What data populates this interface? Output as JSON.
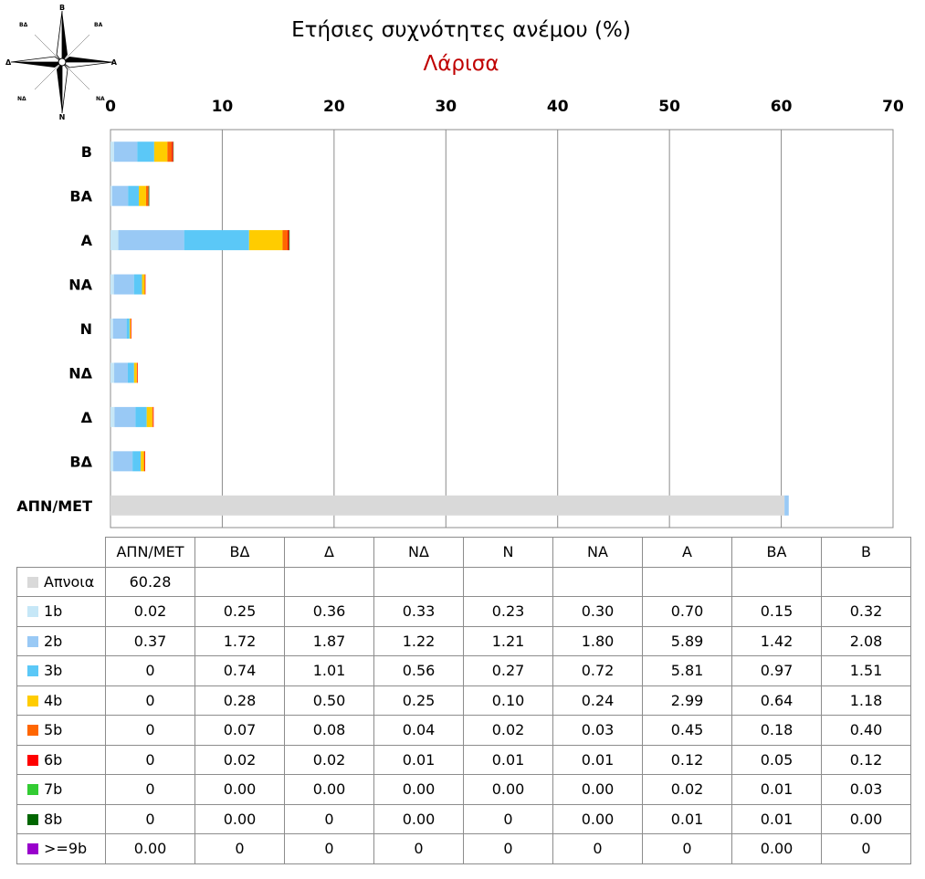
{
  "title": "Ετήσιες συχνότητες ανέμου (%)",
  "subtitle": "Λάρισα",
  "compass": {
    "north": "B",
    "northeast": "BA",
    "east": "A",
    "southeast": "NA",
    "south": "N",
    "southwest": "NΔ",
    "west": "Δ",
    "northwest": "BΔ"
  },
  "chart_data": {
    "type": "bar",
    "orientation": "horizontal",
    "stacked": true,
    "title": "Ετήσιες συχνότητες ανέμου (%)",
    "subtitle": "Λάρισα",
    "xlim": [
      0,
      70
    ],
    "xticks": [
      0,
      10,
      20,
      30,
      40,
      50,
      60,
      70
    ],
    "grid": true,
    "categories": [
      "ΑΠΝ/ΜΕΤ",
      "ΒΔ",
      "Δ",
      "ΝΔ",
      "Ν",
      "ΝΑ",
      "Α",
      "ΒΑ",
      "Β"
    ],
    "category_labels": [
      "ΑΠΝ/ΜΕΤ",
      "ΒΔ",
      "Δ",
      "ΝΔ",
      "Ν",
      "ΝΑ",
      "Α",
      "ΒΑ",
      "Β"
    ],
    "axis_labels": [
      "Β",
      "ΒΑ",
      "Α",
      "ΝΑ",
      "Ν",
      "ΝΔ",
      "Δ",
      "ΒΔ",
      "ΑΠΝ/ΜΕΤ"
    ],
    "series": [
      {
        "name": "Απνοια",
        "color": "#d9d9d9",
        "values": [
          60.28,
          null,
          null,
          null,
          null,
          null,
          null,
          null,
          null
        ],
        "display": [
          "60.28",
          "",
          "",
          "",
          "",
          "",
          "",
          "",
          ""
        ]
      },
      {
        "name": "1b",
        "color": "#c6e7f7",
        "values": [
          0.02,
          0.25,
          0.36,
          0.33,
          0.23,
          0.3,
          0.7,
          0.15,
          0.32
        ],
        "display": [
          "0.02",
          "0.25",
          "0.36",
          "0.33",
          "0.23",
          "0.30",
          "0.70",
          "0.15",
          "0.32"
        ]
      },
      {
        "name": "2b",
        "color": "#99c9f5",
        "values": [
          0.37,
          1.72,
          1.87,
          1.22,
          1.21,
          1.8,
          5.89,
          1.42,
          2.08
        ],
        "display": [
          "0.37",
          "1.72",
          "1.87",
          "1.22",
          "1.21",
          "1.80",
          "5.89",
          "1.42",
          "2.08"
        ]
      },
      {
        "name": "3b",
        "color": "#5bc8f7",
        "values": [
          0,
          0.74,
          1.01,
          0.56,
          0.27,
          0.72,
          5.81,
          0.97,
          1.51
        ],
        "display": [
          "0",
          "0.74",
          "1.01",
          "0.56",
          "0.27",
          "0.72",
          "5.81",
          "0.97",
          "1.51"
        ]
      },
      {
        "name": "4b",
        "color": "#ffcc00",
        "values": [
          0,
          0.28,
          0.5,
          0.25,
          0.1,
          0.24,
          2.99,
          0.64,
          1.18
        ],
        "display": [
          "0",
          "0.28",
          "0.50",
          "0.25",
          "0.10",
          "0.24",
          "2.99",
          "0.64",
          "1.18"
        ]
      },
      {
        "name": "5b",
        "color": "#ff6600",
        "values": [
          0,
          0.07,
          0.08,
          0.04,
          0.02,
          0.03,
          0.45,
          0.18,
          0.4
        ],
        "display": [
          "0",
          "0.07",
          "0.08",
          "0.04",
          "0.02",
          "0.03",
          "0.45",
          "0.18",
          "0.40"
        ]
      },
      {
        "name": "6b",
        "color": "#ff0000",
        "values": [
          0,
          0.02,
          0.02,
          0.01,
          0.01,
          0.01,
          0.12,
          0.05,
          0.12
        ],
        "display": [
          "0",
          "0.02",
          "0.02",
          "0.01",
          "0.01",
          "0.01",
          "0.12",
          "0.05",
          "0.12"
        ]
      },
      {
        "name": "7b",
        "color": "#33cc33",
        "values": [
          0,
          0.0,
          0.0,
          0.0,
          0.0,
          0.0,
          0.02,
          0.01,
          0.03
        ],
        "display": [
          "0",
          "0.00",
          "0.00",
          "0.00",
          "0.00",
          "0.00",
          "0.02",
          "0.01",
          "0.03"
        ]
      },
      {
        "name": "8b",
        "color": "#006600",
        "values": [
          0,
          0.0,
          0,
          0.0,
          0,
          0.0,
          0.01,
          0.01,
          0.0
        ],
        "display": [
          "0",
          "0.00",
          "0",
          "0.00",
          "0",
          "0.00",
          "0.01",
          "0.01",
          "0.00"
        ]
      },
      {
        "name": ">=9b",
        "color": "#9900cc",
        "values": [
          0.0,
          0,
          0,
          0,
          0,
          0,
          0,
          0.0,
          0
        ],
        "display": [
          "0.00",
          "0",
          "0",
          "0",
          "0",
          "0",
          "0",
          "0.00",
          "0"
        ]
      }
    ]
  }
}
